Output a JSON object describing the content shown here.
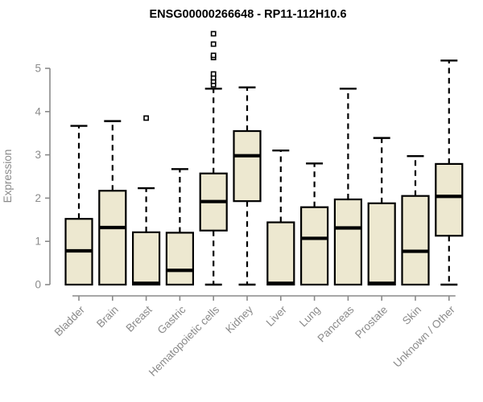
{
  "header": {
    "title": "ENSG00000266648 - RP11-112H10.6"
  },
  "chart_data": {
    "type": "boxplot",
    "title": "ENSG00000266648 - RP11-112H10.6",
    "xlabel": "",
    "ylabel": "Expression",
    "ylim": [
      0,
      5.85
    ],
    "yticks": [
      "0",
      "1",
      "2",
      "3",
      "4",
      "5"
    ],
    "grid": false,
    "legend": "none",
    "categories": [
      "Bladder",
      "Brain",
      "Breast",
      "Gastric",
      "Hematopoietic cells",
      "Kidney",
      "Liver",
      "Lung",
      "Pancreas",
      "Prostate",
      "Skin",
      "Unknown / Other"
    ],
    "series": [
      {
        "name": "Bladder",
        "whisker_low": 0,
        "q1": 0,
        "median": 0.78,
        "q3": 1.52,
        "whisker_high": 3.67,
        "outliers": []
      },
      {
        "name": "Brain",
        "whisker_low": 0,
        "q1": 0,
        "median": 1.32,
        "q3": 2.17,
        "whisker_high": 3.78,
        "outliers": []
      },
      {
        "name": "Breast",
        "whisker_low": 0,
        "q1": 0,
        "median": 0.03,
        "q3": 1.21,
        "whisker_high": 2.23,
        "outliers": [
          3.85
        ]
      },
      {
        "name": "Gastric",
        "whisker_low": 0,
        "q1": 0,
        "median": 0.33,
        "q3": 1.2,
        "whisker_high": 2.67,
        "outliers": []
      },
      {
        "name": "Hematopoietic cells",
        "whisker_low": 0,
        "q1": 1.25,
        "median": 1.92,
        "q3": 2.57,
        "whisker_high": 4.53,
        "outliers": [
          4.62,
          4.7,
          4.78,
          4.87,
          5.25,
          5.3,
          5.56,
          5.8
        ]
      },
      {
        "name": "Kidney",
        "whisker_low": 0,
        "q1": 1.93,
        "median": 2.98,
        "q3": 3.55,
        "whisker_high": 4.56,
        "outliers": []
      },
      {
        "name": "Liver",
        "whisker_low": 0,
        "q1": 0,
        "median": 0.03,
        "q3": 1.44,
        "whisker_high": 3.1,
        "outliers": []
      },
      {
        "name": "Lung",
        "whisker_low": 0,
        "q1": 0,
        "median": 1.07,
        "q3": 1.79,
        "whisker_high": 2.8,
        "outliers": []
      },
      {
        "name": "Pancreas",
        "whisker_low": 0,
        "q1": 0,
        "median": 1.31,
        "q3": 1.97,
        "whisker_high": 4.53,
        "outliers": []
      },
      {
        "name": "Prostate",
        "whisker_low": 0,
        "q1": 0,
        "median": 0.03,
        "q3": 1.88,
        "whisker_high": 3.39,
        "outliers": []
      },
      {
        "name": "Skin",
        "whisker_low": 0,
        "q1": 0,
        "median": 0.77,
        "q3": 2.05,
        "whisker_high": 2.97,
        "outliers": []
      },
      {
        "name": "Unknown / Other",
        "whisker_low": 0,
        "q1": 1.13,
        "median": 2.04,
        "q3": 2.79,
        "whisker_high": 5.18,
        "outliers": []
      }
    ],
    "colors": {
      "box_fill": "#ede8d0",
      "box_border": "#000000",
      "median": "#000000",
      "whisker": "#000000",
      "outlier_stroke": "#000000",
      "axis": "#8a8a8a",
      "tick_label": "#8a8a8a",
      "title": "#000000",
      "background": "#ffffff"
    }
  }
}
